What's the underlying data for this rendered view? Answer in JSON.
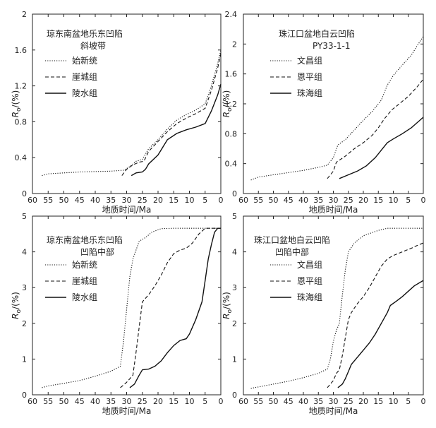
{
  "figure": {
    "xlabel": "地质时间/Ma",
    "ylabel_main": "R",
    "ylabel_sub": "o",
    "ylabel_unit": "/(%)"
  },
  "chart_data": [
    {
      "type": "line",
      "title_lines": [
        "琼东南盆地乐东凹陷",
        "斜坡带"
      ],
      "xlim": [
        60,
        0
      ],
      "ylim": [
        0,
        2
      ],
      "xticks": [
        60,
        55,
        50,
        45,
        40,
        35,
        30,
        25,
        20,
        15,
        10,
        5,
        0
      ],
      "yticks": [
        "0",
        "0.4",
        "0.8",
        "1.2",
        "1.6",
        "2"
      ],
      "series": [
        {
          "name": "始新统",
          "style": "dotted",
          "points": [
            [
              57,
              0.2
            ],
            [
              55,
              0.22
            ],
            [
              50,
              0.23
            ],
            [
              45,
              0.24
            ],
            [
              40,
              0.245
            ],
            [
              35,
              0.25
            ],
            [
              31,
              0.26
            ],
            [
              29,
              0.3
            ],
            [
              27,
              0.36
            ],
            [
              25,
              0.38
            ],
            [
              23,
              0.5
            ],
            [
              20,
              0.6
            ],
            [
              17,
              0.72
            ],
            [
              14,
              0.82
            ],
            [
              11,
              0.88
            ],
            [
              8,
              0.93
            ],
            [
              5,
              1.0
            ],
            [
              3,
              1.2
            ],
            [
              1,
              1.45
            ],
            [
              0,
              1.6
            ]
          ]
        },
        {
          "name": "崖城组",
          "style": "dashed",
          "points": [
            [
              31.5,
              0.2
            ],
            [
              30,
              0.27
            ],
            [
              28,
              0.32
            ],
            [
              26,
              0.35
            ],
            [
              24.5,
              0.36
            ],
            [
              23,
              0.47
            ],
            [
              20,
              0.58
            ],
            [
              17,
              0.69
            ],
            [
              14,
              0.78
            ],
            [
              11,
              0.84
            ],
            [
              8,
              0.89
            ],
            [
              5,
              0.95
            ],
            [
              3,
              1.15
            ],
            [
              1,
              1.4
            ],
            [
              0,
              1.56
            ]
          ]
        },
        {
          "name": "陵水组",
          "style": "solid",
          "points": [
            [
              28.5,
              0.2
            ],
            [
              27,
              0.23
            ],
            [
              25,
              0.24
            ],
            [
              24,
              0.27
            ],
            [
              23,
              0.33
            ],
            [
              20,
              0.43
            ],
            [
              17,
              0.6
            ],
            [
              14,
              0.67
            ],
            [
              11,
              0.71
            ],
            [
              8,
              0.74
            ],
            [
              5,
              0.78
            ],
            [
              3,
              0.92
            ],
            [
              1,
              1.1
            ],
            [
              0,
              1.22
            ]
          ]
        }
      ]
    },
    {
      "type": "line",
      "title_lines": [
        "珠江口盆地白云凹陷",
        "PY33-1-1"
      ],
      "xlim": [
        60,
        0
      ],
      "ylim": [
        0,
        2.4
      ],
      "xticks": [
        60,
        55,
        50,
        45,
        40,
        35,
        30,
        25,
        20,
        15,
        10,
        5,
        0
      ],
      "yticks": [
        "0",
        "0.4",
        "0.8",
        "1.2",
        "1.6",
        "2",
        "2.4"
      ],
      "series": [
        {
          "name": "文昌组",
          "style": "dotted",
          "points": [
            [
              57.5,
              0.18
            ],
            [
              55,
              0.22
            ],
            [
              50,
              0.25
            ],
            [
              45,
              0.28
            ],
            [
              40,
              0.31
            ],
            [
              35,
              0.35
            ],
            [
              32,
              0.38
            ],
            [
              30,
              0.48
            ],
            [
              28.5,
              0.65
            ],
            [
              26,
              0.72
            ],
            [
              23,
              0.85
            ],
            [
              20,
              0.98
            ],
            [
              17,
              1.1
            ],
            [
              14,
              1.25
            ],
            [
              12,
              1.45
            ],
            [
              10,
              1.58
            ],
            [
              7,
              1.72
            ],
            [
              4,
              1.85
            ],
            [
              2,
              1.98
            ],
            [
              0,
              2.1
            ]
          ]
        },
        {
          "name": "恩平组",
          "style": "dashed",
          "points": [
            [
              32,
              0.2
            ],
            [
              30,
              0.3
            ],
            [
              29,
              0.42
            ],
            [
              26,
              0.5
            ],
            [
              23,
              0.6
            ],
            [
              20,
              0.68
            ],
            [
              17,
              0.78
            ],
            [
              15,
              0.88
            ],
            [
              13,
              1.0
            ],
            [
              10.5,
              1.12
            ],
            [
              8,
              1.2
            ],
            [
              5,
              1.3
            ],
            [
              2,
              1.43
            ],
            [
              0,
              1.53
            ]
          ]
        },
        {
          "name": "珠海组",
          "style": "solid",
          "points": [
            [
              28,
              0.2
            ],
            [
              25,
              0.25
            ],
            [
              22,
              0.3
            ],
            [
              19,
              0.37
            ],
            [
              16,
              0.48
            ],
            [
              14,
              0.58
            ],
            [
              12,
              0.68
            ],
            [
              10,
              0.73
            ],
            [
              7,
              0.8
            ],
            [
              4,
              0.88
            ],
            [
              2,
              0.95
            ],
            [
              0,
              1.02
            ]
          ]
        }
      ]
    },
    {
      "type": "line",
      "title_lines": [
        "琼东南盆地乐东凹陷",
        "凹陷中部"
      ],
      "xlim": [
        60,
        0
      ],
      "ylim": [
        0,
        5
      ],
      "xticks": [
        60,
        55,
        50,
        45,
        40,
        35,
        30,
        25,
        20,
        15,
        10,
        5,
        0
      ],
      "yticks": [
        "0",
        "1",
        "2",
        "3",
        "4",
        "5"
      ],
      "series": [
        {
          "name": "始新统",
          "style": "dotted",
          "points": [
            [
              57,
              0.2
            ],
            [
              55,
              0.25
            ],
            [
              50,
              0.32
            ],
            [
              45,
              0.4
            ],
            [
              40,
              0.52
            ],
            [
              35,
              0.66
            ],
            [
              32,
              0.8
            ],
            [
              31,
              1.5
            ],
            [
              30,
              2.4
            ],
            [
              29,
              3.3
            ],
            [
              28,
              3.8
            ],
            [
              26,
              4.3
            ],
            [
              24,
              4.4
            ],
            [
              22,
              4.55
            ],
            [
              19,
              4.65
            ],
            [
              15,
              4.66
            ],
            [
              10,
              4.66
            ],
            [
              5,
              4.66
            ],
            [
              0,
              4.66
            ]
          ]
        },
        {
          "name": "崖城组",
          "style": "dashed",
          "points": [
            [
              32,
              0.2
            ],
            [
              30,
              0.35
            ],
            [
              28,
              0.55
            ],
            [
              27,
              1.2
            ],
            [
              26,
              1.9
            ],
            [
              25,
              2.6
            ],
            [
              23,
              2.8
            ],
            [
              21,
              3.05
            ],
            [
              19,
              3.35
            ],
            [
              17,
              3.7
            ],
            [
              15,
              3.95
            ],
            [
              13,
              4.05
            ],
            [
              11,
              4.1
            ],
            [
              9,
              4.25
            ],
            [
              7,
              4.5
            ],
            [
              5,
              4.66
            ],
            [
              0,
              4.66
            ]
          ]
        },
        {
          "name": "陵水组",
          "style": "solid",
          "points": [
            [
              29,
              0.2
            ],
            [
              27.5,
              0.3
            ],
            [
              26,
              0.55
            ],
            [
              25,
              0.7
            ],
            [
              23,
              0.72
            ],
            [
              21,
              0.8
            ],
            [
              19,
              0.95
            ],
            [
              17,
              1.18
            ],
            [
              15,
              1.38
            ],
            [
              13,
              1.52
            ],
            [
              11,
              1.57
            ],
            [
              10,
              1.7
            ],
            [
              8,
              2.1
            ],
            [
              6,
              2.6
            ],
            [
              5,
              3.2
            ],
            [
              4,
              3.8
            ],
            [
              3,
              4.2
            ],
            [
              2,
              4.55
            ],
            [
              1,
              4.66
            ],
            [
              0,
              4.66
            ]
          ]
        }
      ]
    },
    {
      "type": "line",
      "title_lines": [
        "珠江口盆地白云凹陷",
        "凹陷中部"
      ],
      "xlim": [
        60,
        0
      ],
      "ylim": [
        0,
        5
      ],
      "xticks": [
        60,
        55,
        50,
        45,
        40,
        35,
        30,
        25,
        20,
        15,
        10,
        5,
        0
      ],
      "yticks": [
        "0",
        "1",
        "2",
        "3",
        "4",
        "5"
      ],
      "series": [
        {
          "name": "文昌组",
          "style": "dotted",
          "points": [
            [
              57.5,
              0.18
            ],
            [
              55,
              0.22
            ],
            [
              50,
              0.3
            ],
            [
              45,
              0.38
            ],
            [
              40,
              0.48
            ],
            [
              35,
              0.6
            ],
            [
              32,
              0.72
            ],
            [
              31,
              1.0
            ],
            [
              30,
              1.5
            ],
            [
              29,
              1.8
            ],
            [
              28,
              2.0
            ],
            [
              27,
              2.8
            ],
            [
              26,
              3.5
            ],
            [
              25,
              4.0
            ],
            [
              23,
              4.25
            ],
            [
              20,
              4.45
            ],
            [
              15,
              4.6
            ],
            [
              12,
              4.66
            ],
            [
              5,
              4.66
            ],
            [
              0,
              4.66
            ]
          ]
        },
        {
          "name": "恩平组",
          "style": "dashed",
          "points": [
            [
              32,
              0.2
            ],
            [
              30,
              0.4
            ],
            [
              29,
              0.6
            ],
            [
              28,
              0.7
            ],
            [
              27,
              1.1
            ],
            [
              26,
              1.6
            ],
            [
              25,
              2.1
            ],
            [
              24,
              2.3
            ],
            [
              22,
              2.55
            ],
            [
              20,
              2.75
            ],
            [
              18,
              3.0
            ],
            [
              16,
              3.3
            ],
            [
              14,
              3.6
            ],
            [
              12,
              3.8
            ],
            [
              10,
              3.9
            ],
            [
              7,
              4.0
            ],
            [
              4,
              4.1
            ],
            [
              2,
              4.18
            ],
            [
              0,
              4.25
            ]
          ]
        },
        {
          "name": "珠海组",
          "style": "solid",
          "points": [
            [
              28.5,
              0.2
            ],
            [
              27,
              0.3
            ],
            [
              26,
              0.45
            ],
            [
              25,
              0.65
            ],
            [
              24,
              0.85
            ],
            [
              22,
              1.05
            ],
            [
              20,
              1.25
            ],
            [
              18,
              1.45
            ],
            [
              16,
              1.7
            ],
            [
              14,
              2.0
            ],
            [
              12,
              2.3
            ],
            [
              11,
              2.5
            ],
            [
              9,
              2.62
            ],
            [
              7,
              2.75
            ],
            [
              5,
              2.9
            ],
            [
              3,
              3.05
            ],
            [
              0,
              3.2
            ]
          ]
        }
      ]
    }
  ]
}
